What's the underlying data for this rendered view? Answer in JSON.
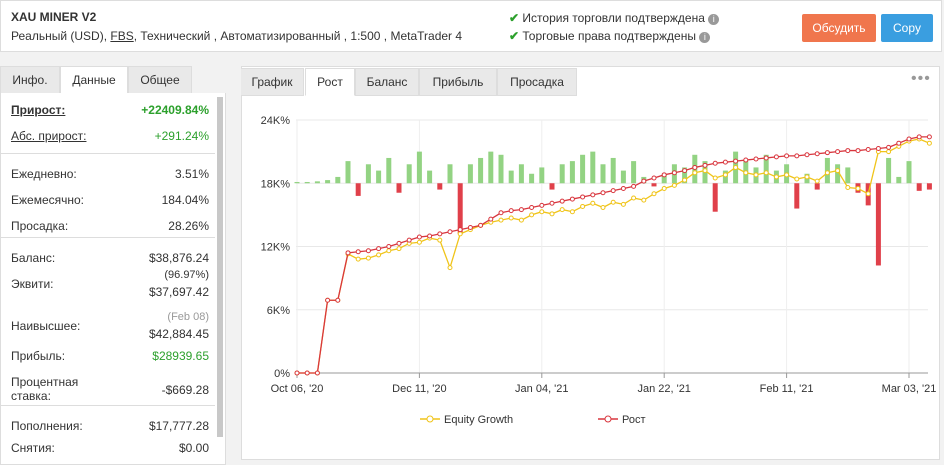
{
  "header": {
    "title": "XAU MINER V2",
    "subtitle_prefix": "Реальный (USD),",
    "broker": "FBS",
    "subtitle_rest": ", Технический , Автоматизированный , 1:500 , MetaTrader 4",
    "verifications": [
      "История торговли подтверждена",
      "Торговые права подтверждены"
    ],
    "buttons": [
      "Обсудить",
      "Copy"
    ]
  },
  "left_tabs": [
    "Инфо.",
    "Данные",
    "Общее"
  ],
  "stats": [
    [
      {
        "label": "Прирост:",
        "value": "+22409.84%",
        "color": "#2ca02c"
      },
      {
        "label": "Абс. прирост:",
        "value": "+291.24%",
        "color": "#2ca02c"
      }
    ],
    [
      {
        "label": "Ежедневно:",
        "value": "3.51%"
      },
      {
        "label": "Ежемесячно:",
        "value": "184.04%"
      },
      {
        "label": "Просадка:",
        "value": "28.26%"
      }
    ],
    [
      {
        "label": "Баланс:",
        "value": "$38,876.24"
      },
      {
        "label": "Эквити:",
        "note": "(96.97%)",
        "value": "$37,697.42"
      },
      {
        "label": "Наивысшее:",
        "note": "(Feb 08)",
        "value": "$42,884.45"
      },
      {
        "label": "Прибыль:",
        "value": "$28939.65",
        "color": "#2ca02c"
      },
      {
        "label": "Процентная ставка:",
        "value": "-$669.28"
      }
    ],
    [
      {
        "label": "Пополнения:",
        "value": "$17,777.28"
      },
      {
        "label": "Снятия:",
        "value": "$0.00"
      }
    ]
  ],
  "chart_tabs": [
    "График",
    "Рост",
    "Баланс",
    "Прибыль",
    "Просадка"
  ],
  "chart_data": {
    "type": "line",
    "categories": [
      "Oct 06, '20",
      null,
      null,
      null,
      null,
      null,
      null,
      null,
      null,
      null,
      null,
      null,
      "Dec 11, '20",
      null,
      null,
      null,
      null,
      null,
      null,
      null,
      null,
      null,
      null,
      null,
      "Jan 04, '21",
      null,
      null,
      null,
      null,
      null,
      null,
      null,
      null,
      null,
      null,
      null,
      "Jan 22, '21",
      null,
      null,
      null,
      null,
      null,
      null,
      null,
      null,
      null,
      null,
      null,
      "Feb 11, '21",
      null,
      null,
      null,
      null,
      null,
      null,
      null,
      null,
      null,
      null,
      null,
      "Mar 03, '21",
      null,
      null
    ],
    "ylim": [
      0,
      24000
    ],
    "yticks": [
      {
        "value": 0,
        "label": "0%"
      },
      {
        "value": 6000,
        "label": "6K%"
      },
      {
        "value": 12000,
        "label": "12K%"
      },
      {
        "value": 18000,
        "label": "18K%"
      },
      {
        "value": 24000,
        "label": "24K%"
      }
    ],
    "y2lim": [
      -3,
      1
    ],
    "grid": true,
    "series": [
      {
        "name": "Equity Growth",
        "color": "#f0c419",
        "values": [
          0,
          0,
          0,
          6900,
          6900,
          11300,
          10800,
          10900,
          11200,
          11600,
          11800,
          12300,
          12400,
          12800,
          12600,
          10000,
          13200,
          13600,
          14000,
          14300,
          14500,
          14700,
          14500,
          15000,
          15300,
          15100,
          15500,
          15300,
          15800,
          16100,
          15700,
          16200,
          16000,
          16600,
          16400,
          17000,
          17500,
          17800,
          18300,
          19000,
          19200,
          18500,
          18800,
          19500,
          19000,
          18800,
          19000,
          18600,
          18800,
          18400,
          18600,
          18200,
          19000,
          19200,
          17600,
          17500,
          17000,
          21000,
          21000,
          21500,
          22000,
          22200,
          21800
        ]
      },
      {
        "name": "Рост",
        "color": "#d9363e",
        "values": [
          0,
          0,
          0,
          6900,
          6900,
          11400,
          11500,
          11600,
          11800,
          12000,
          12300,
          12600,
          12900,
          13000,
          13200,
          13400,
          13600,
          13800,
          14000,
          14600,
          15200,
          15400,
          15500,
          15700,
          15900,
          16100,
          16300,
          16500,
          16700,
          16900,
          17100,
          17300,
          17500,
          17700,
          18200,
          18500,
          18800,
          19000,
          19200,
          19500,
          19700,
          19900,
          20000,
          20100,
          20200,
          20300,
          20400,
          20500,
          20600,
          20600,
          20700,
          20800,
          20900,
          21000,
          21100,
          21100,
          21200,
          21300,
          21400,
          21800,
          22200,
          22400,
          22400
        ]
      }
    ],
    "bars": {
      "axis": "y2",
      "positive_color": "#93d383",
      "negative_color": "#e0404a",
      "values": [
        0.02,
        0.02,
        0.03,
        0.05,
        0.1,
        0.35,
        -0.2,
        0.3,
        0.2,
        0.4,
        -0.15,
        0.3,
        0.5,
        0.2,
        -0.1,
        0.3,
        -0.8,
        0.3,
        0.4,
        0.5,
        0.45,
        0.2,
        0.3,
        0.15,
        0.25,
        -0.1,
        0.3,
        0.35,
        0.45,
        0.5,
        0.3,
        0.4,
        0.2,
        0.35,
        0.1,
        -0.05,
        0.15,
        0.3,
        0.25,
        0.45,
        0.35,
        -0.45,
        0.2,
        0.5,
        0.35,
        0.25,
        0.45,
        0.2,
        0.3,
        -0.4,
        0.15,
        -0.1,
        0.4,
        0.3,
        0.25,
        -0.15,
        -0.35,
        -1.3,
        0.4,
        0.1,
        0.35,
        -0.12,
        -0.1
      ]
    }
  }
}
